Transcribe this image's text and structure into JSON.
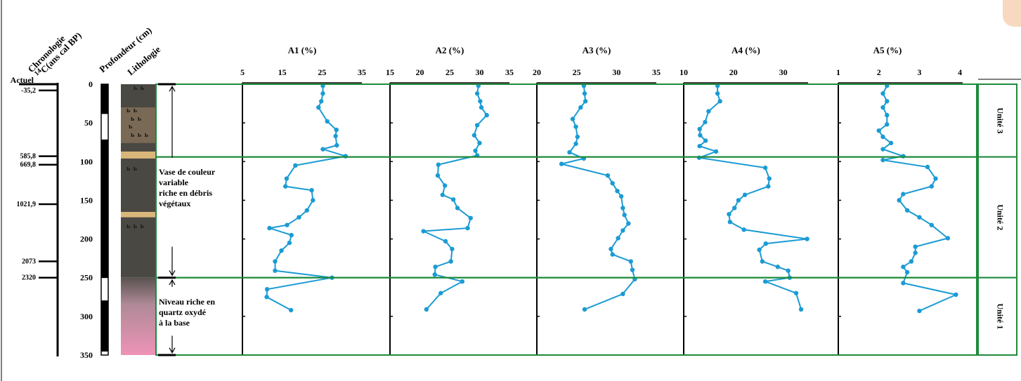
{
  "headers": {
    "chronologie_line1": "Chronologie",
    "chronologie_sup": "14",
    "chronologie_line2": "C(ans cal BP)",
    "profondeur": "Profondeur (cm)",
    "lithologie": "Lithologie"
  },
  "chronology_labels": [
    {
      "label": "Actuel",
      "depth": 0
    },
    {
      "label": "-35,2",
      "depth": 8
    },
    {
      "label": "585,8",
      "depth": 93
    },
    {
      "label": "669,8",
      "depth": 104
    },
    {
      "label": "1021,9",
      "depth": 155
    },
    {
      "label": "2073",
      "depth": 229
    },
    {
      "label": "2320",
      "depth": 250
    }
  ],
  "depth_axis": {
    "ticks": [
      "0",
      "50",
      "100",
      "150",
      "200",
      "250",
      "300",
      "350"
    ],
    "range": [
      0,
      350
    ]
  },
  "descriptions": {
    "unit_upper": [
      "Vase de couleur",
      "variable",
      "riche en débris",
      "végétaux"
    ],
    "unit_lower": [
      "Niveau riche en",
      "quartz oxydé",
      "à la base"
    ]
  },
  "units": [
    {
      "label": "Unité 3",
      "top": 0,
      "bottom": 94
    },
    {
      "label": "Unité 2",
      "top": 94,
      "bottom": 250
    },
    {
      "label": "Unité 1",
      "top": 250,
      "bottom": 350
    }
  ],
  "colors": {
    "series": "#1b9bd4",
    "boundary": "#1e8a3c",
    "sediment_dark": "#4a4843",
    "sediment_brown": "#7a6a55",
    "sand": "#d9b77a",
    "pink": "#ee93b6"
  },
  "chart_data": [
    {
      "type": "line",
      "title": "A1 (%)",
      "x_ticks": [
        "5",
        "15",
        "25",
        "35"
      ],
      "xlim": [
        5,
        35
      ],
      "y_axis": "Profondeur (cm)",
      "ylim": [
        0,
        350
      ],
      "points": [
        [
          25.2,
          2
        ],
        [
          25.2,
          12
        ],
        [
          24.8,
          22
        ],
        [
          24.1,
          30
        ],
        [
          26.3,
          48
        ],
        [
          28.6,
          59
        ],
        [
          28.4,
          67
        ],
        [
          28.7,
          79
        ],
        [
          25.2,
          84
        ],
        [
          30.9,
          93
        ],
        [
          18.3,
          105
        ],
        [
          16.1,
          122
        ],
        [
          15.8,
          132
        ],
        [
          22.4,
          137
        ],
        [
          22.7,
          150
        ],
        [
          21.2,
          163
        ],
        [
          19.2,
          172
        ],
        [
          16.2,
          182
        ],
        [
          11.8,
          186
        ],
        [
          17.3,
          195
        ],
        [
          16.8,
          205
        ],
        [
          14.8,
          215
        ],
        [
          13.2,
          229
        ],
        [
          13.2,
          241
        ],
        [
          27.5,
          250
        ],
        [
          11.2,
          265
        ],
        [
          11.1,
          275
        ],
        [
          17.2,
          292
        ]
      ],
      "color": "#1b9bd4"
    },
    {
      "type": "line",
      "title": "A2 (%)",
      "x_ticks": [
        "15",
        "20",
        "25",
        "30",
        "35"
      ],
      "xlim": [
        15,
        35
      ],
      "y_axis": "Profondeur (cm)",
      "ylim": [
        0,
        350
      ],
      "points": [
        [
          29.8,
          2
        ],
        [
          29.6,
          12
        ],
        [
          30.1,
          22
        ],
        [
          30.3,
          30
        ],
        [
          31.2,
          40
        ],
        [
          29.6,
          53
        ],
        [
          29.1,
          66
        ],
        [
          30.0,
          76
        ],
        [
          29.3,
          86
        ],
        [
          29.6,
          92
        ],
        [
          23.1,
          104
        ],
        [
          23.0,
          118
        ],
        [
          24.2,
          131
        ],
        [
          23.8,
          143
        ],
        [
          25.6,
          149
        ],
        [
          26.3,
          160
        ],
        [
          28.5,
          173
        ],
        [
          28.0,
          186
        ],
        [
          20.6,
          190
        ],
        [
          24.3,
          203
        ],
        [
          25.4,
          213
        ],
        [
          25.2,
          229
        ],
        [
          22.6,
          236
        ],
        [
          22.5,
          246
        ],
        [
          27.1,
          255
        ],
        [
          23.5,
          270
        ],
        [
          21.1,
          291
        ]
      ],
      "color": "#1b9bd4"
    },
    {
      "type": "line",
      "title": "A3 (%)",
      "x_ticks": [
        "20",
        "25",
        "30",
        "35"
      ],
      "xlim": [
        20,
        35
      ],
      "y_axis": "Profondeur (cm)",
      "ylim": [
        0,
        350
      ],
      "points": [
        [
          25.9,
          2
        ],
        [
          26.0,
          12
        ],
        [
          26.1,
          22
        ],
        [
          25.5,
          30
        ],
        [
          24.5,
          45
        ],
        [
          24.9,
          55
        ],
        [
          25.1,
          68
        ],
        [
          24.9,
          77
        ],
        [
          24.1,
          88
        ],
        [
          25.9,
          96
        ],
        [
          23.1,
          103
        ],
        [
          28.9,
          118
        ],
        [
          29.5,
          128
        ],
        [
          30.1,
          138
        ],
        [
          30.6,
          145
        ],
        [
          30.8,
          160
        ],
        [
          31.0,
          169
        ],
        [
          31.5,
          180
        ],
        [
          30.8,
          189
        ],
        [
          30.2,
          199
        ],
        [
          29.3,
          213
        ],
        [
          29.5,
          220
        ],
        [
          31.8,
          229
        ],
        [
          32.0,
          240
        ],
        [
          32.3,
          252
        ],
        [
          30.8,
          271
        ],
        [
          26.0,
          291
        ]
      ],
      "color": "#1b9bd4"
    },
    {
      "type": "line",
      "title": "A4 (%)",
      "x_ticks": [
        "10",
        "20",
        "30"
      ],
      "xlim": [
        10,
        35
      ],
      "y_axis": "Profondeur (cm)",
      "ylim": [
        0,
        350
      ],
      "points": [
        [
          16.8,
          2
        ],
        [
          16.8,
          12
        ],
        [
          17.3,
          22
        ],
        [
          15.0,
          35
        ],
        [
          14.3,
          49
        ],
        [
          13.2,
          58
        ],
        [
          13.3,
          66
        ],
        [
          14.4,
          73
        ],
        [
          13.2,
          80
        ],
        [
          16.5,
          87
        ],
        [
          13.1,
          95
        ],
        [
          26.4,
          108
        ],
        [
          27.2,
          122
        ],
        [
          27.0,
          132
        ],
        [
          22.3,
          143
        ],
        [
          21.0,
          150
        ],
        [
          20.2,
          160
        ],
        [
          19.1,
          168
        ],
        [
          19.3,
          178
        ],
        [
          22.1,
          188
        ],
        [
          34.8,
          200
        ],
        [
          26.5,
          206
        ],
        [
          25.2,
          214
        ],
        [
          25.8,
          229
        ],
        [
          28.9,
          236
        ],
        [
          31.0,
          241
        ],
        [
          31.3,
          250
        ],
        [
          26.4,
          255
        ],
        [
          32.6,
          270
        ],
        [
          33.6,
          291
        ]
      ],
      "color": "#1b9bd4"
    },
    {
      "type": "line",
      "title": "A5 (%)",
      "x_ticks": [
        "1",
        "2",
        "3",
        "4"
      ],
      "xlim": [
        1,
        4.5
      ],
      "y_axis": "Profondeur (cm)",
      "ylim": [
        0,
        350
      ],
      "points": [
        [
          2.2,
          2
        ],
        [
          2.1,
          12
        ],
        [
          2.2,
          22
        ],
        [
          2.1,
          30
        ],
        [
          2.2,
          40
        ],
        [
          2.2,
          52
        ],
        [
          2.0,
          60
        ],
        [
          2.1,
          68
        ],
        [
          2.3,
          76
        ],
        [
          2.1,
          84
        ],
        [
          2.6,
          93
        ],
        [
          2.1,
          98
        ],
        [
          3.2,
          107
        ],
        [
          3.4,
          122
        ],
        [
          3.3,
          132
        ],
        [
          2.6,
          142
        ],
        [
          2.5,
          150
        ],
        [
          2.7,
          163
        ],
        [
          3.0,
          172
        ],
        [
          3.3,
          182
        ],
        [
          3.7,
          199
        ],
        [
          2.9,
          210
        ],
        [
          2.9,
          218
        ],
        [
          2.8,
          229
        ],
        [
          2.6,
          236
        ],
        [
          2.7,
          243
        ],
        [
          2.6,
          257
        ],
        [
          3.9,
          272
        ],
        [
          3.0,
          293
        ]
      ],
      "color": "#1b9bd4"
    }
  ]
}
